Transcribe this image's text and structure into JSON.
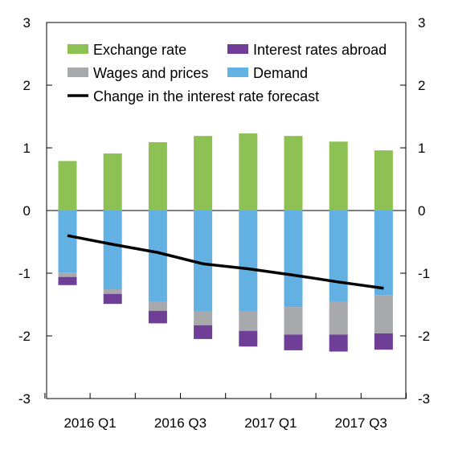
{
  "colors": {
    "exchange": "#8dc153",
    "wages": "#a7a9ac",
    "interest_abroad": "#6f3f98",
    "demand": "#63b0e3",
    "line": "#000000"
  },
  "chart_data": {
    "type": "bar",
    "stacked": true,
    "categories": [
      "2016 Q1",
      "2016 Q2",
      "2016 Q3",
      "2016 Q4",
      "2017 Q1",
      "2017 Q2",
      "2017 Q3",
      "2017 Q4"
    ],
    "x_tick_labels": [
      "2016 Q1",
      "2016 Q3",
      "2017 Q1",
      "2017 Q3"
    ],
    "ylim": [
      -3,
      3
    ],
    "y_ticks": [
      3,
      2,
      1,
      0,
      -1,
      -2,
      -3
    ],
    "y_tick_labels": [
      "3",
      "2",
      "1",
      "0",
      "-1",
      "-2",
      "-3"
    ],
    "grid": false,
    "legend": {
      "position": "top",
      "entries": [
        {
          "key": "exchange",
          "label": "Exchange rate",
          "kind": "bar"
        },
        {
          "key": "interest_abroad",
          "label": "Interest rates abroad",
          "kind": "bar"
        },
        {
          "key": "wages",
          "label": "Wages and prices",
          "kind": "bar"
        },
        {
          "key": "demand",
          "label": "Demand",
          "kind": "bar"
        },
        {
          "key": "line",
          "label": "Change in the interest rate forecast",
          "kind": "line"
        }
      ]
    },
    "series": [
      {
        "name": "Exchange rate",
        "key": "exchange",
        "values": [
          0.79,
          0.91,
          1.09,
          1.19,
          1.23,
          1.19,
          1.1,
          0.96
        ]
      },
      {
        "name": "Demand",
        "key": "demand",
        "values": [
          -0.99,
          -1.25,
          -1.46,
          -1.61,
          -1.61,
          -1.54,
          -1.46,
          -1.35
        ]
      },
      {
        "name": "Wages and prices",
        "key": "wages",
        "values": [
          -0.07,
          -0.08,
          -0.14,
          -0.22,
          -0.31,
          -0.44,
          -0.52,
          -0.61
        ]
      },
      {
        "name": "Interest rates abroad",
        "key": "interest_abroad",
        "values": [
          -0.13,
          -0.16,
          -0.2,
          -0.22,
          -0.25,
          -0.25,
          -0.27,
          -0.26
        ]
      }
    ],
    "line": {
      "name": "Change in the interest rate forecast",
      "key": "line",
      "values": [
        -0.4,
        -0.54,
        -0.67,
        -0.85,
        -0.93,
        -1.03,
        -1.14,
        -1.24
      ]
    }
  }
}
